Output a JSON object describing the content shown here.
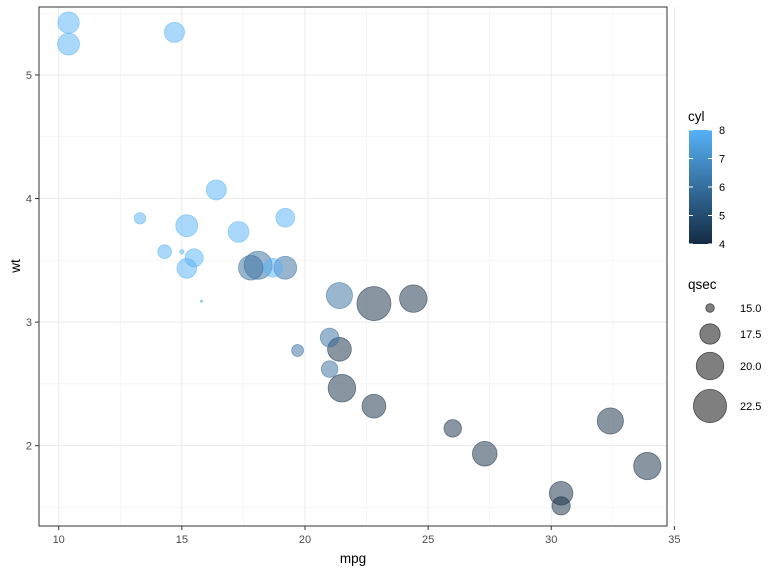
{
  "chart_data": {
    "type": "scatter",
    "xlabel": "mpg",
    "ylabel": "wt",
    "xlim": [
      9.2,
      34.7
    ],
    "ylim": [
      1.35,
      5.55
    ],
    "x_ticks": [
      10,
      15,
      20,
      25,
      30,
      35
    ],
    "y_ticks": [
      2,
      3,
      4,
      5
    ],
    "grid": true,
    "legend_position": "right",
    "color_legend": {
      "title": "cyl",
      "low": 4,
      "high": 8,
      "low_color": "#132B43",
      "high_color": "#56B1F7",
      "ticks": [
        4,
        5,
        6,
        7,
        8
      ]
    },
    "size_legend": {
      "title": "qsec",
      "values": [
        15,
        17.5,
        20,
        22.5
      ],
      "labels": [
        "15.0",
        "17.5",
        "20.0",
        "22.5"
      ]
    },
    "points": [
      {
        "mpg": 21.0,
        "wt": 2.62,
        "cyl": 6,
        "qsec": 16.46
      },
      {
        "mpg": 21.0,
        "wt": 2.875,
        "cyl": 6,
        "qsec": 17.02
      },
      {
        "mpg": 22.8,
        "wt": 2.32,
        "cyl": 4,
        "qsec": 18.61
      },
      {
        "mpg": 21.4,
        "wt": 3.215,
        "cyl": 6,
        "qsec": 19.44
      },
      {
        "mpg": 18.7,
        "wt": 3.44,
        "cyl": 8,
        "qsec": 17.02
      },
      {
        "mpg": 18.1,
        "wt": 3.46,
        "cyl": 6,
        "qsec": 20.22
      },
      {
        "mpg": 14.3,
        "wt": 3.57,
        "cyl": 8,
        "qsec": 15.84
      },
      {
        "mpg": 24.4,
        "wt": 3.19,
        "cyl": 4,
        "qsec": 20.0
      },
      {
        "mpg": 22.8,
        "wt": 3.15,
        "cyl": 4,
        "qsec": 22.9
      },
      {
        "mpg": 19.2,
        "wt": 3.44,
        "cyl": 6,
        "qsec": 18.3
      },
      {
        "mpg": 17.8,
        "wt": 3.44,
        "cyl": 6,
        "qsec": 18.9
      },
      {
        "mpg": 16.4,
        "wt": 4.07,
        "cyl": 8,
        "qsec": 17.4
      },
      {
        "mpg": 17.3,
        "wt": 3.73,
        "cyl": 8,
        "qsec": 17.6
      },
      {
        "mpg": 15.2,
        "wt": 3.78,
        "cyl": 8,
        "qsec": 18.0
      },
      {
        "mpg": 10.4,
        "wt": 5.25,
        "cyl": 8,
        "qsec": 17.98
      },
      {
        "mpg": 10.4,
        "wt": 5.424,
        "cyl": 8,
        "qsec": 17.82
      },
      {
        "mpg": 14.7,
        "wt": 5.345,
        "cyl": 8,
        "qsec": 17.42
      },
      {
        "mpg": 32.4,
        "wt": 2.2,
        "cyl": 4,
        "qsec": 19.47
      },
      {
        "mpg": 30.4,
        "wt": 1.615,
        "cyl": 4,
        "qsec": 18.52
      },
      {
        "mpg": 33.9,
        "wt": 1.835,
        "cyl": 4,
        "qsec": 19.9
      },
      {
        "mpg": 21.5,
        "wt": 2.465,
        "cyl": 4,
        "qsec": 20.01
      },
      {
        "mpg": 15.5,
        "wt": 3.52,
        "cyl": 8,
        "qsec": 16.87
      },
      {
        "mpg": 15.2,
        "wt": 3.435,
        "cyl": 8,
        "qsec": 17.3
      },
      {
        "mpg": 13.3,
        "wt": 3.84,
        "cyl": 8,
        "qsec": 15.41
      },
      {
        "mpg": 19.2,
        "wt": 3.845,
        "cyl": 8,
        "qsec": 17.05
      },
      {
        "mpg": 27.3,
        "wt": 1.935,
        "cyl": 4,
        "qsec": 18.9
      },
      {
        "mpg": 26.0,
        "wt": 2.14,
        "cyl": 4,
        "qsec": 16.7
      },
      {
        "mpg": 30.4,
        "wt": 1.513,
        "cyl": 4,
        "qsec": 16.9
      },
      {
        "mpg": 15.8,
        "wt": 3.17,
        "cyl": 8,
        "qsec": 14.5
      },
      {
        "mpg": 19.7,
        "wt": 2.77,
        "cyl": 6,
        "qsec": 15.5
      },
      {
        "mpg": 15.0,
        "wt": 3.57,
        "cyl": 8,
        "qsec": 14.6
      },
      {
        "mpg": 21.4,
        "wt": 2.78,
        "cyl": 4,
        "qsec": 18.6
      }
    ]
  }
}
